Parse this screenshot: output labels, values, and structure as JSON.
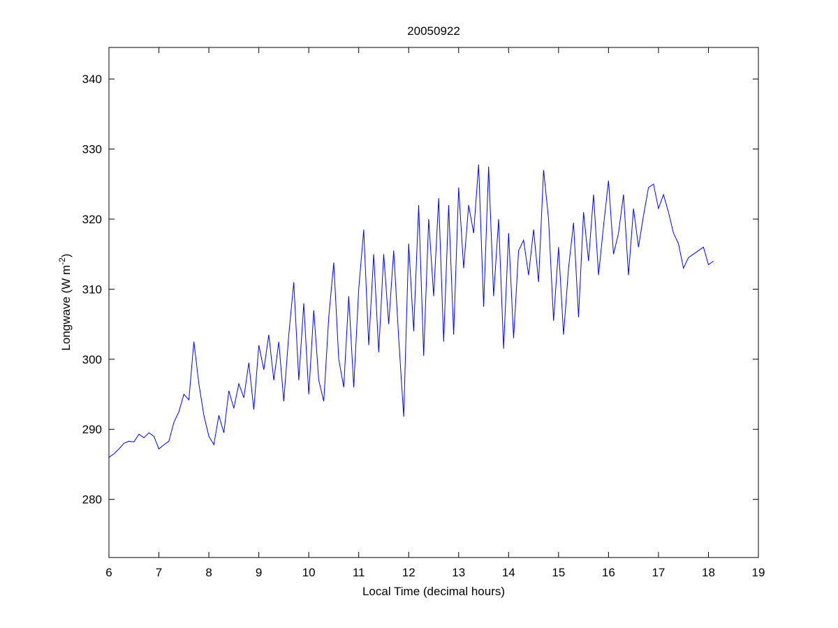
{
  "chart_data": {
    "type": "line",
    "title": "20050922",
    "xlabel": "Local Time (decimal hours)",
    "ylabel": [
      "Longwave (W m",
      "-2",
      ")"
    ],
    "color": "#0000ff",
    "x": [
      6,
      6.1,
      6.2,
      6.3,
      6.4,
      6.5,
      6.6,
      6.7,
      6.8,
      6.9,
      7,
      7.1,
      7.2,
      7.3,
      7.4,
      7.5,
      7.6,
      7.7,
      7.8,
      7.9,
      8,
      8.1,
      8.2,
      8.3,
      8.4,
      8.5,
      8.6,
      8.7,
      8.8,
      8.9,
      9,
      9.1,
      9.2,
      9.3,
      9.4,
      9.5,
      9.6,
      9.7,
      9.8,
      9.9,
      10,
      10.1,
      10.2,
      10.3,
      10.4,
      10.5,
      10.6,
      10.7,
      10.8,
      10.9,
      11,
      11.1,
      11.2,
      11.3,
      11.4,
      11.5,
      11.6,
      11.7,
      11.8,
      11.9,
      12,
      12.1,
      12.2,
      12.3,
      12.4,
      12.5,
      12.6,
      12.7,
      12.8,
      12.9,
      13,
      13.1,
      13.2,
      13.3,
      13.4,
      13.5,
      13.6,
      13.7,
      13.8,
      13.9,
      14,
      14.1,
      14.2,
      14.3,
      14.4,
      14.5,
      14.6,
      14.7,
      14.8,
      14.9,
      15,
      15.1,
      15.2,
      15.3,
      15.4,
      15.5,
      15.6,
      15.7,
      15.8,
      15.9,
      16,
      16.1,
      16.2,
      16.3,
      16.4,
      16.5,
      16.6,
      16.7,
      16.8,
      16.9,
      17,
      17.1,
      17.2,
      17.3,
      17.4,
      17.5,
      17.6,
      17.7,
      17.8,
      17.9,
      18,
      18.1
    ],
    "values": [
      286,
      286.5,
      287.2,
      288,
      288.3,
      288.2,
      289.3,
      288.8,
      289.5,
      289,
      287.2,
      287.8,
      288.3,
      291,
      292.5,
      295,
      294.2,
      302.5,
      296.5,
      292,
      289,
      287.8,
      292,
      289.5,
      295.5,
      293,
      296.5,
      294.5,
      299.5,
      292.8,
      302,
      298.5,
      303.5,
      297,
      302.5,
      294,
      303.5,
      311,
      297,
      308,
      295,
      307,
      297,
      294,
      306,
      313.8,
      300,
      296,
      309,
      296,
      310,
      318.5,
      302,
      315,
      301,
      315,
      305,
      315.5,
      303,
      291.8,
      316.5,
      304,
      322,
      300.5,
      320,
      309,
      323,
      302.5,
      322,
      303.5,
      324.5,
      313,
      322,
      318,
      327.8,
      307.5,
      327.5,
      309,
      320,
      301.5,
      318,
      303,
      315.5,
      317,
      312,
      318.5,
      311,
      327,
      320,
      305.5,
      316,
      303.5,
      313,
      319.5,
      306,
      321,
      314,
      323.5,
      312,
      319,
      325.5,
      315,
      318,
      323.5,
      312,
      321.5,
      316,
      320.5,
      324.5,
      325,
      321.5,
      323.5,
      321,
      318,
      316.5,
      313,
      314.5,
      315,
      315.5,
      316,
      313.5,
      314
    ],
    "xlim": [
      6,
      19
    ],
    "xticks": [
      6,
      7,
      8,
      9,
      10,
      11,
      12,
      13,
      14,
      15,
      16,
      17,
      18,
      19
    ],
    "ylim": [
      271.7,
      344.5
    ],
    "yticks": [
      280,
      290,
      300,
      310,
      320,
      330,
      340
    ]
  }
}
